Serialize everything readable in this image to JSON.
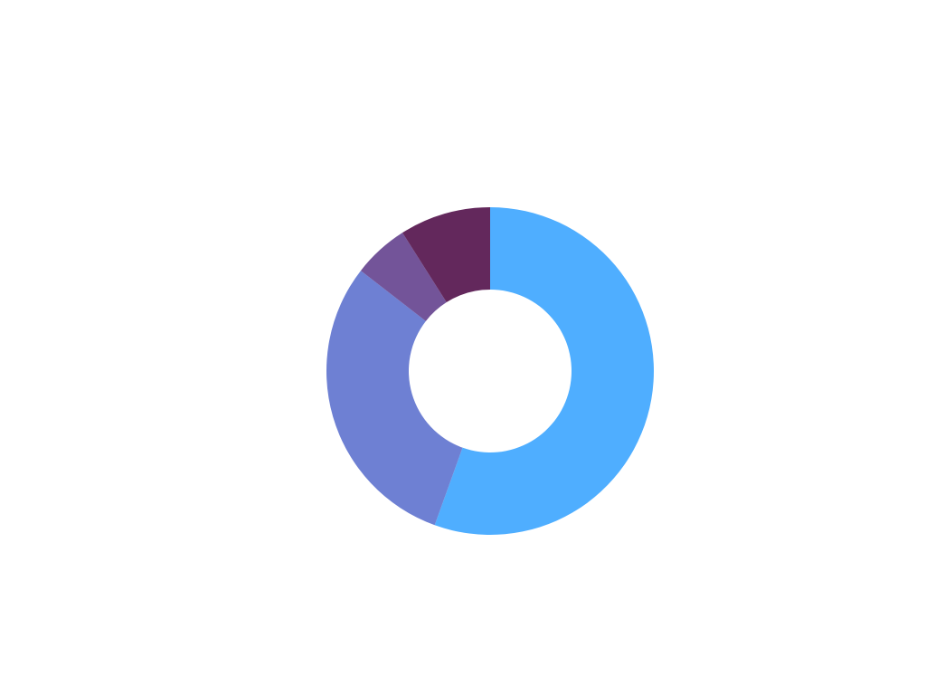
{
  "chart_data": {
    "type": "pie",
    "style": "donut",
    "title": "",
    "categories": [
      "",
      "",
      "",
      ""
    ],
    "values": [
      55.5,
      30.0,
      5.5,
      9.0
    ],
    "colors": [
      "#4FAEFF",
      "#6E80D3",
      "#735499",
      "#63285C"
    ],
    "start_angle_deg": 0,
    "direction": "clockwise",
    "legend": "none",
    "data_labels": false
  }
}
